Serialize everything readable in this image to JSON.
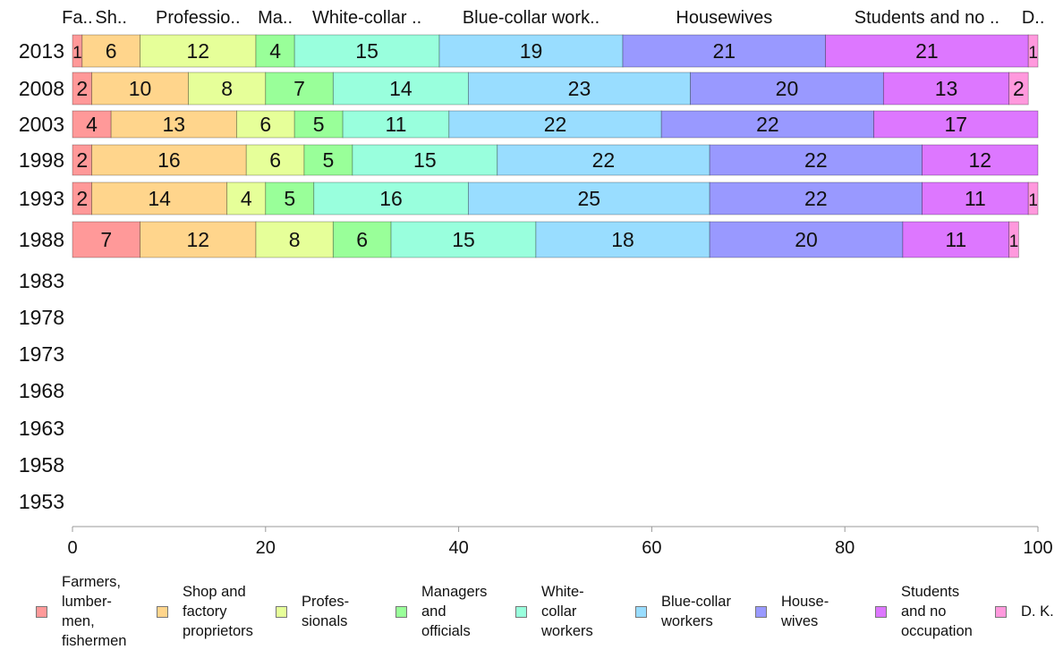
{
  "chart_data": {
    "type": "bar",
    "orientation": "horizontal",
    "stacked": true,
    "categories": [
      "2013",
      "2008",
      "2003",
      "1998",
      "1993",
      "1988",
      "1983",
      "1978",
      "1973",
      "1968",
      "1963",
      "1958",
      "1953"
    ],
    "series": [
      {
        "name": "Farmers, lumbermen, fishermen",
        "legend_label": "Farmers,\nlumber-\nmen,\nfishermen",
        "top_label": "Fa..",
        "color": "#ff9999",
        "values": [
          1,
          2,
          4,
          2,
          2,
          7,
          null,
          null,
          null,
          null,
          null,
          null,
          null
        ]
      },
      {
        "name": "Shop and factory proprietors",
        "legend_label": "Shop and\nfactory\nproprietors",
        "top_label": "Sh..",
        "color": "#ffd58c",
        "values": [
          6,
          10,
          13,
          16,
          14,
          12,
          null,
          null,
          null,
          null,
          null,
          null,
          null
        ]
      },
      {
        "name": "Professionals",
        "legend_label": "Profes-\nsionals",
        "top_label": "Professio..",
        "color": "#e6ff99",
        "values": [
          12,
          8,
          6,
          6,
          4,
          8,
          null,
          null,
          null,
          null,
          null,
          null,
          null
        ]
      },
      {
        "name": "Managers and officials",
        "legend_label": "Managers\nand\nofficials",
        "top_label": "Ma..",
        "color": "#99ff99",
        "values": [
          4,
          7,
          5,
          5,
          5,
          6,
          null,
          null,
          null,
          null,
          null,
          null,
          null
        ]
      },
      {
        "name": "White-collar workers",
        "legend_label": "White-\ncollar\nworkers",
        "top_label": "White-collar ..",
        "color": "#99ffdd",
        "values": [
          15,
          14,
          11,
          15,
          16,
          15,
          null,
          null,
          null,
          null,
          null,
          null,
          null
        ]
      },
      {
        "name": "Blue-collar workers",
        "legend_label": "Blue-collar\nworkers",
        "top_label": "Blue-collar work..",
        "color": "#99ddff",
        "values": [
          19,
          23,
          22,
          22,
          25,
          18,
          null,
          null,
          null,
          null,
          null,
          null,
          null
        ]
      },
      {
        "name": "Housewives",
        "legend_label": "House-\nwives",
        "top_label": "Housewives",
        "color": "#9999ff",
        "values": [
          21,
          20,
          22,
          22,
          22,
          20,
          null,
          null,
          null,
          null,
          null,
          null,
          null
        ]
      },
      {
        "name": "Students and no occupation",
        "legend_label": "Students\nand no\noccupation",
        "top_label": "Students and no ..",
        "color": "#dd77ff",
        "values": [
          21,
          13,
          17,
          12,
          11,
          11,
          null,
          null,
          null,
          null,
          null,
          null,
          null
        ]
      },
      {
        "name": "D. K.",
        "legend_label": "D. K.",
        "top_label": "D..",
        "color": "#ff99dd",
        "values": [
          1,
          2,
          null,
          null,
          1,
          1,
          null,
          null,
          null,
          null,
          null,
          null,
          null
        ]
      }
    ],
    "xlim": [
      0,
      100
    ],
    "xticks": [
      0,
      20,
      40,
      60,
      80,
      100
    ],
    "title": "",
    "xlabel": "",
    "ylabel": "",
    "grid": false,
    "legend_position": "bottom"
  }
}
